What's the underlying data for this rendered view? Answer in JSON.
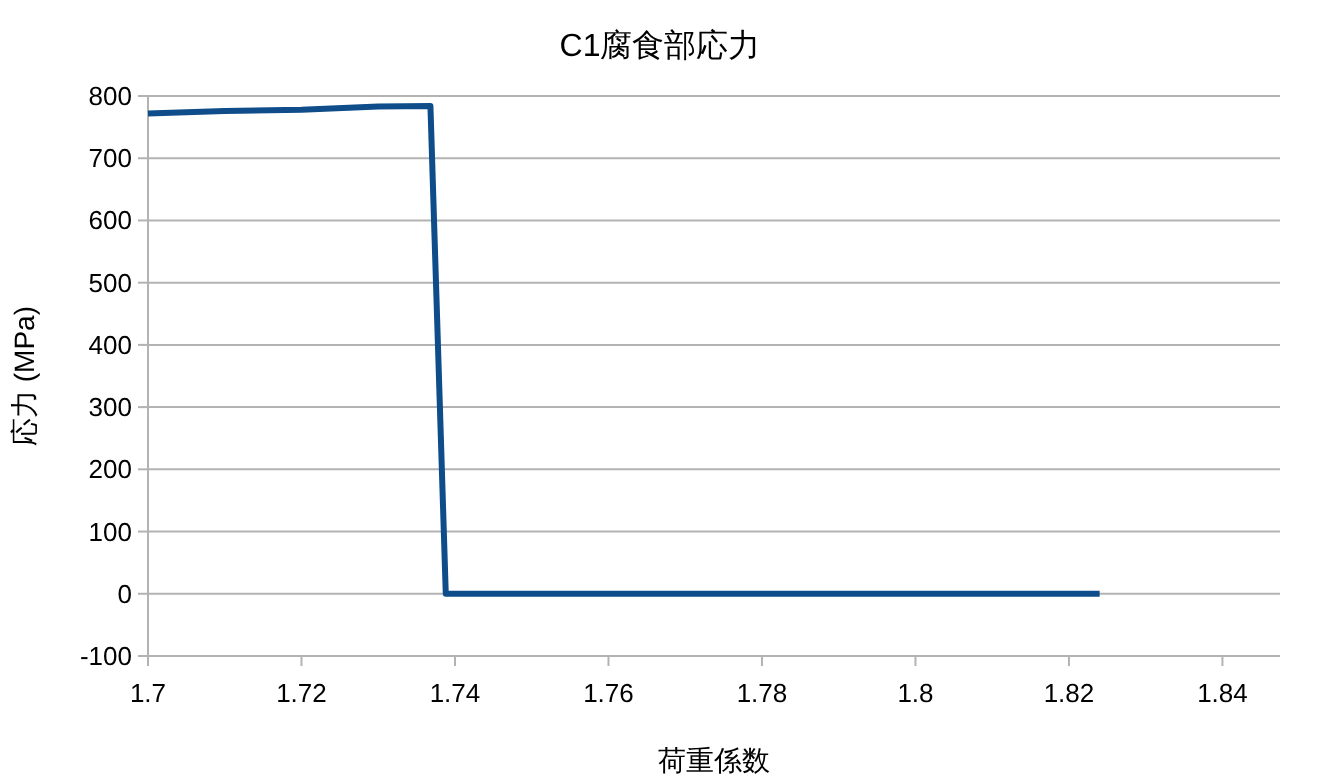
{
  "chart_data": {
    "type": "line",
    "title": "C1腐食部応力",
    "xlabel": "荷重係数",
    "ylabel": "応力 (MPa)",
    "x": [
      1.7,
      1.71,
      1.72,
      1.73,
      1.7368,
      1.7388,
      1.76,
      1.78,
      1.8,
      1.824
    ],
    "series": [
      {
        "color": "#0e4c8a",
        "values": [
          772,
          776,
          778,
          783,
          784,
          0,
          0,
          0,
          0,
          0
        ]
      }
    ],
    "xlim": [
      1.7,
      1.8475
    ],
    "ylim": [
      -100,
      800
    ],
    "xticks": [
      1.7,
      1.72,
      1.74,
      1.76,
      1.78,
      1.8,
      1.82,
      1.84
    ],
    "yticks": [
      -100,
      0,
      100,
      200,
      300,
      400,
      500,
      600,
      700,
      800
    ],
    "grid": "y",
    "marker": "none",
    "line_style": "solid"
  }
}
